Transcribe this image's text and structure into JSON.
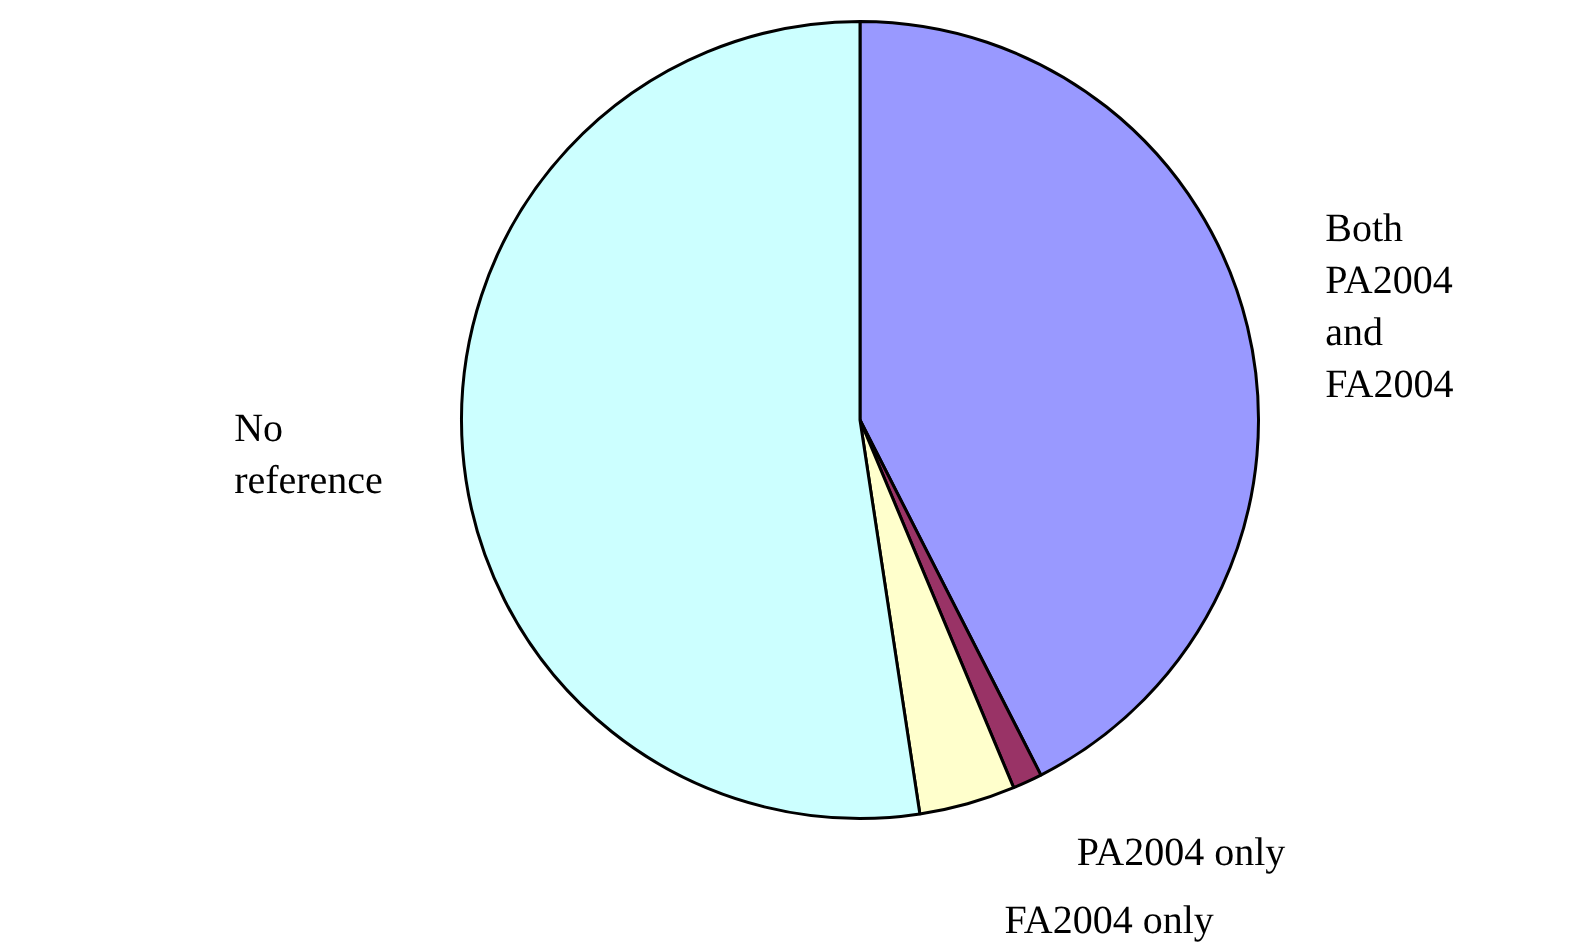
{
  "chart_data": {
    "type": "pie",
    "categories": [
      "Both PA2004 and FA2004",
      "PA2004 only",
      "FA2004 only",
      "No reference"
    ],
    "values": [
      42.5,
      1.2,
      3.9,
      52.4
    ],
    "colors": [
      "#9999ff",
      "#993366",
      "#ffffcc",
      "#ccffff"
    ],
    "legend": false
  }
}
